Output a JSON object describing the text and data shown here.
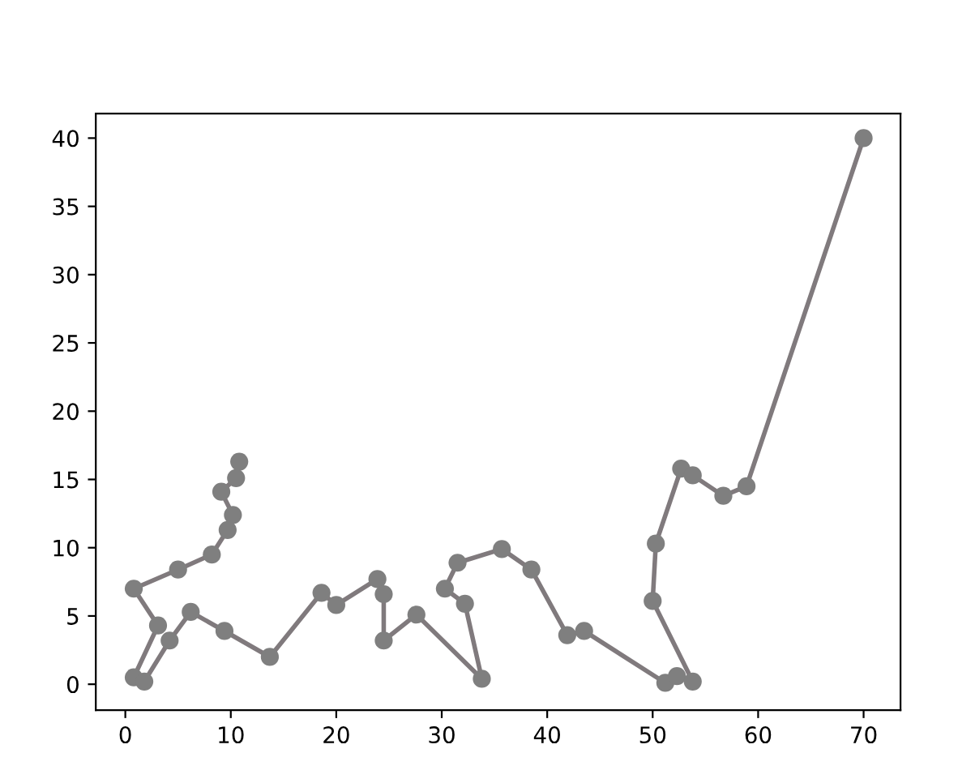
{
  "chart_data": {
    "type": "line",
    "marker": "circle",
    "line_style": "solid",
    "grid": false,
    "legend": false,
    "xlim": [
      -2.8,
      73.5
    ],
    "ylim": [
      -1.9,
      41.8
    ],
    "xticks": [
      0,
      10,
      20,
      30,
      40,
      50,
      60,
      70
    ],
    "yticks": [
      0,
      5,
      10,
      15,
      20,
      25,
      30,
      35,
      40
    ],
    "series": [
      {
        "color": "#807a7d",
        "x": [
          10.8,
          10.5,
          9.1,
          10.2,
          9.7,
          8.2,
          5.0,
          0.8,
          3.1,
          0.8,
          1.8,
          4.2,
          6.2,
          9.4,
          13.7,
          18.6,
          20.0,
          23.9,
          24.5,
          24.5,
          27.6,
          33.8,
          32.2,
          30.3,
          31.5,
          35.7,
          38.5,
          41.9,
          43.5,
          51.2,
          52.3,
          53.8,
          50.0,
          50.3,
          52.7,
          53.8,
          56.7,
          58.9,
          70.0
        ],
        "values": [
          16.3,
          15.1,
          14.1,
          12.4,
          11.3,
          9.5,
          8.4,
          7.0,
          4.3,
          0.5,
          0.2,
          3.2,
          5.3,
          3.9,
          2.0,
          6.7,
          5.8,
          7.7,
          6.6,
          3.2,
          5.1,
          0.4,
          5.9,
          7.0,
          8.9,
          9.9,
          8.4,
          3.6,
          3.9,
          0.1,
          0.6,
          0.2,
          6.1,
          10.3,
          15.8,
          15.3,
          13.8,
          14.5,
          40.0
        ]
      }
    ]
  }
}
